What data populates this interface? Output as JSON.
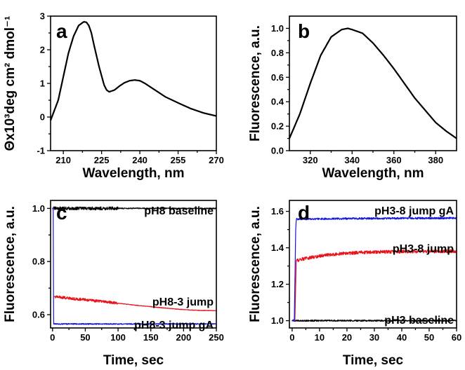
{
  "chart_data": [
    {
      "id": "a",
      "type": "line",
      "panel_label": "a",
      "xlabel": "Wavelength, nm",
      "ylabel": "Θx10³deg cm² dmol⁻¹",
      "xlim": [
        205,
        270
      ],
      "ylim": [
        -1,
        3
      ],
      "xticks": [
        210,
        225,
        240,
        255,
        270
      ],
      "yticks": [
        -1,
        0,
        1,
        2,
        3
      ],
      "ytick_decimals": 0,
      "grid": false,
      "series": [
        {
          "color": "#000000",
          "x": [
            205,
            208,
            210,
            212,
            214,
            216,
            218,
            219,
            220,
            221,
            222,
            224,
            226,
            227,
            228,
            230,
            232,
            234,
            236,
            238,
            240,
            242,
            244,
            246,
            248,
            250,
            255,
            260,
            265,
            270
          ],
          "y": [
            -0.1,
            0.5,
            1.2,
            1.9,
            2.4,
            2.72,
            2.83,
            2.82,
            2.72,
            2.5,
            2.15,
            1.5,
            0.95,
            0.8,
            0.75,
            0.8,
            0.92,
            1.02,
            1.08,
            1.1,
            1.08,
            1.0,
            0.9,
            0.8,
            0.7,
            0.6,
            0.42,
            0.25,
            0.12,
            0.03
          ]
        }
      ]
    },
    {
      "id": "b",
      "type": "line",
      "panel_label": "b",
      "xlabel": "Wavelength, nm",
      "ylabel": "Fluorescence, a.u.",
      "xlim": [
        310,
        390
      ],
      "ylim": [
        0.0,
        1.1
      ],
      "xticks": [
        320,
        340,
        360,
        380
      ],
      "yticks": [
        0.0,
        0.2,
        0.4,
        0.6,
        0.8,
        1.0
      ],
      "ytick_decimals": 1,
      "grid": false,
      "series": [
        {
          "color": "#000000",
          "x": [
            310,
            315,
            320,
            325,
            330,
            335,
            338,
            340,
            345,
            350,
            355,
            360,
            365,
            370,
            375,
            380,
            385,
            390
          ],
          "y": [
            0.1,
            0.3,
            0.55,
            0.78,
            0.93,
            0.99,
            1.0,
            0.99,
            0.96,
            0.88,
            0.78,
            0.67,
            0.55,
            0.43,
            0.33,
            0.23,
            0.16,
            0.1
          ]
        }
      ]
    },
    {
      "id": "c",
      "type": "line",
      "panel_label": "c",
      "xlabel": "Time, sec",
      "ylabel": "Fluorescence, a.u.",
      "xlim": [
        -3,
        250
      ],
      "ylim": [
        0.55,
        1.03
      ],
      "xticks": [
        0,
        50,
        100,
        150,
        200,
        250
      ],
      "yticks": [
        0.6,
        0.8,
        1.0
      ],
      "ytick_decimals": 1,
      "grid": false,
      "annotations": [
        "pH8 baseline",
        "pH8-3 jump",
        "pH8-3 jump gA"
      ],
      "series": [
        {
          "name": "pH8 baseline",
          "color": "#000000",
          "x": [
            0,
            100,
            250
          ],
          "y": [
            1.0,
            1.0,
            1.0
          ],
          "noise": [
            0.006,
            0.002
          ]
        },
        {
          "name": "pH8-3 jump",
          "color": "#e8141c",
          "x": [
            3,
            25,
            50,
            75,
            100,
            125,
            150,
            175,
            200,
            225,
            250
          ],
          "y": [
            0.668,
            0.662,
            0.656,
            0.65,
            0.643,
            0.636,
            0.63,
            0.624,
            0.619,
            0.616,
            0.615
          ],
          "noise": [
            0.005,
            0.001
          ]
        },
        {
          "name": "pH8-3 jump gA",
          "color": "#1515e0",
          "x": [
            0,
            1,
            1.6,
            1.8,
            3,
            100,
            250
          ],
          "y": [
            1.0,
            1.0,
            0.6,
            0.565,
            0.565,
            0.565,
            0.565
          ],
          "noise": [
            0.002,
            0.002
          ]
        }
      ]
    },
    {
      "id": "d",
      "type": "line",
      "panel_label": "d",
      "xlabel": "Time, sec",
      "ylabel": "Fluorescence, a.u.",
      "xlim": [
        -1,
        60
      ],
      "ylim": [
        0.96,
        1.66
      ],
      "xticks": [
        0,
        10,
        20,
        30,
        40,
        50,
        60
      ],
      "yticks": [
        1.0,
        1.2,
        1.4,
        1.6
      ],
      "ytick_decimals": 1,
      "grid": false,
      "annotations": [
        "pH3-8 jump gA",
        "pH3-8 jump",
        "pH3 baseline"
      ],
      "series": [
        {
          "name": "pH3 baseline",
          "color": "#000000",
          "x": [
            0,
            60
          ],
          "y": [
            1.0,
            1.0
          ],
          "noise": [
            0.004,
            0.004
          ]
        },
        {
          "name": "pH3-8 jump",
          "color": "#e8141c",
          "x": [
            1.0,
            1.5,
            3,
            5,
            10,
            15,
            20,
            25,
            30,
            35,
            40,
            45,
            50,
            55,
            60
          ],
          "y": [
            1.0,
            1.33,
            1.336,
            1.342,
            1.355,
            1.364,
            1.37,
            1.374,
            1.376,
            1.378,
            1.379,
            1.38,
            1.38,
            1.381,
            1.381
          ],
          "noise": [
            0.009,
            0.009
          ]
        },
        {
          "name": "pH3-8 jump gA",
          "color": "#1515e0",
          "x": [
            0,
            0.8,
            1.3,
            1.5,
            3,
            20,
            40,
            60
          ],
          "y": [
            1.0,
            1.0,
            1.5,
            1.557,
            1.558,
            1.56,
            1.562,
            1.563
          ],
          "noise": [
            0.005,
            0.005
          ]
        }
      ]
    }
  ]
}
